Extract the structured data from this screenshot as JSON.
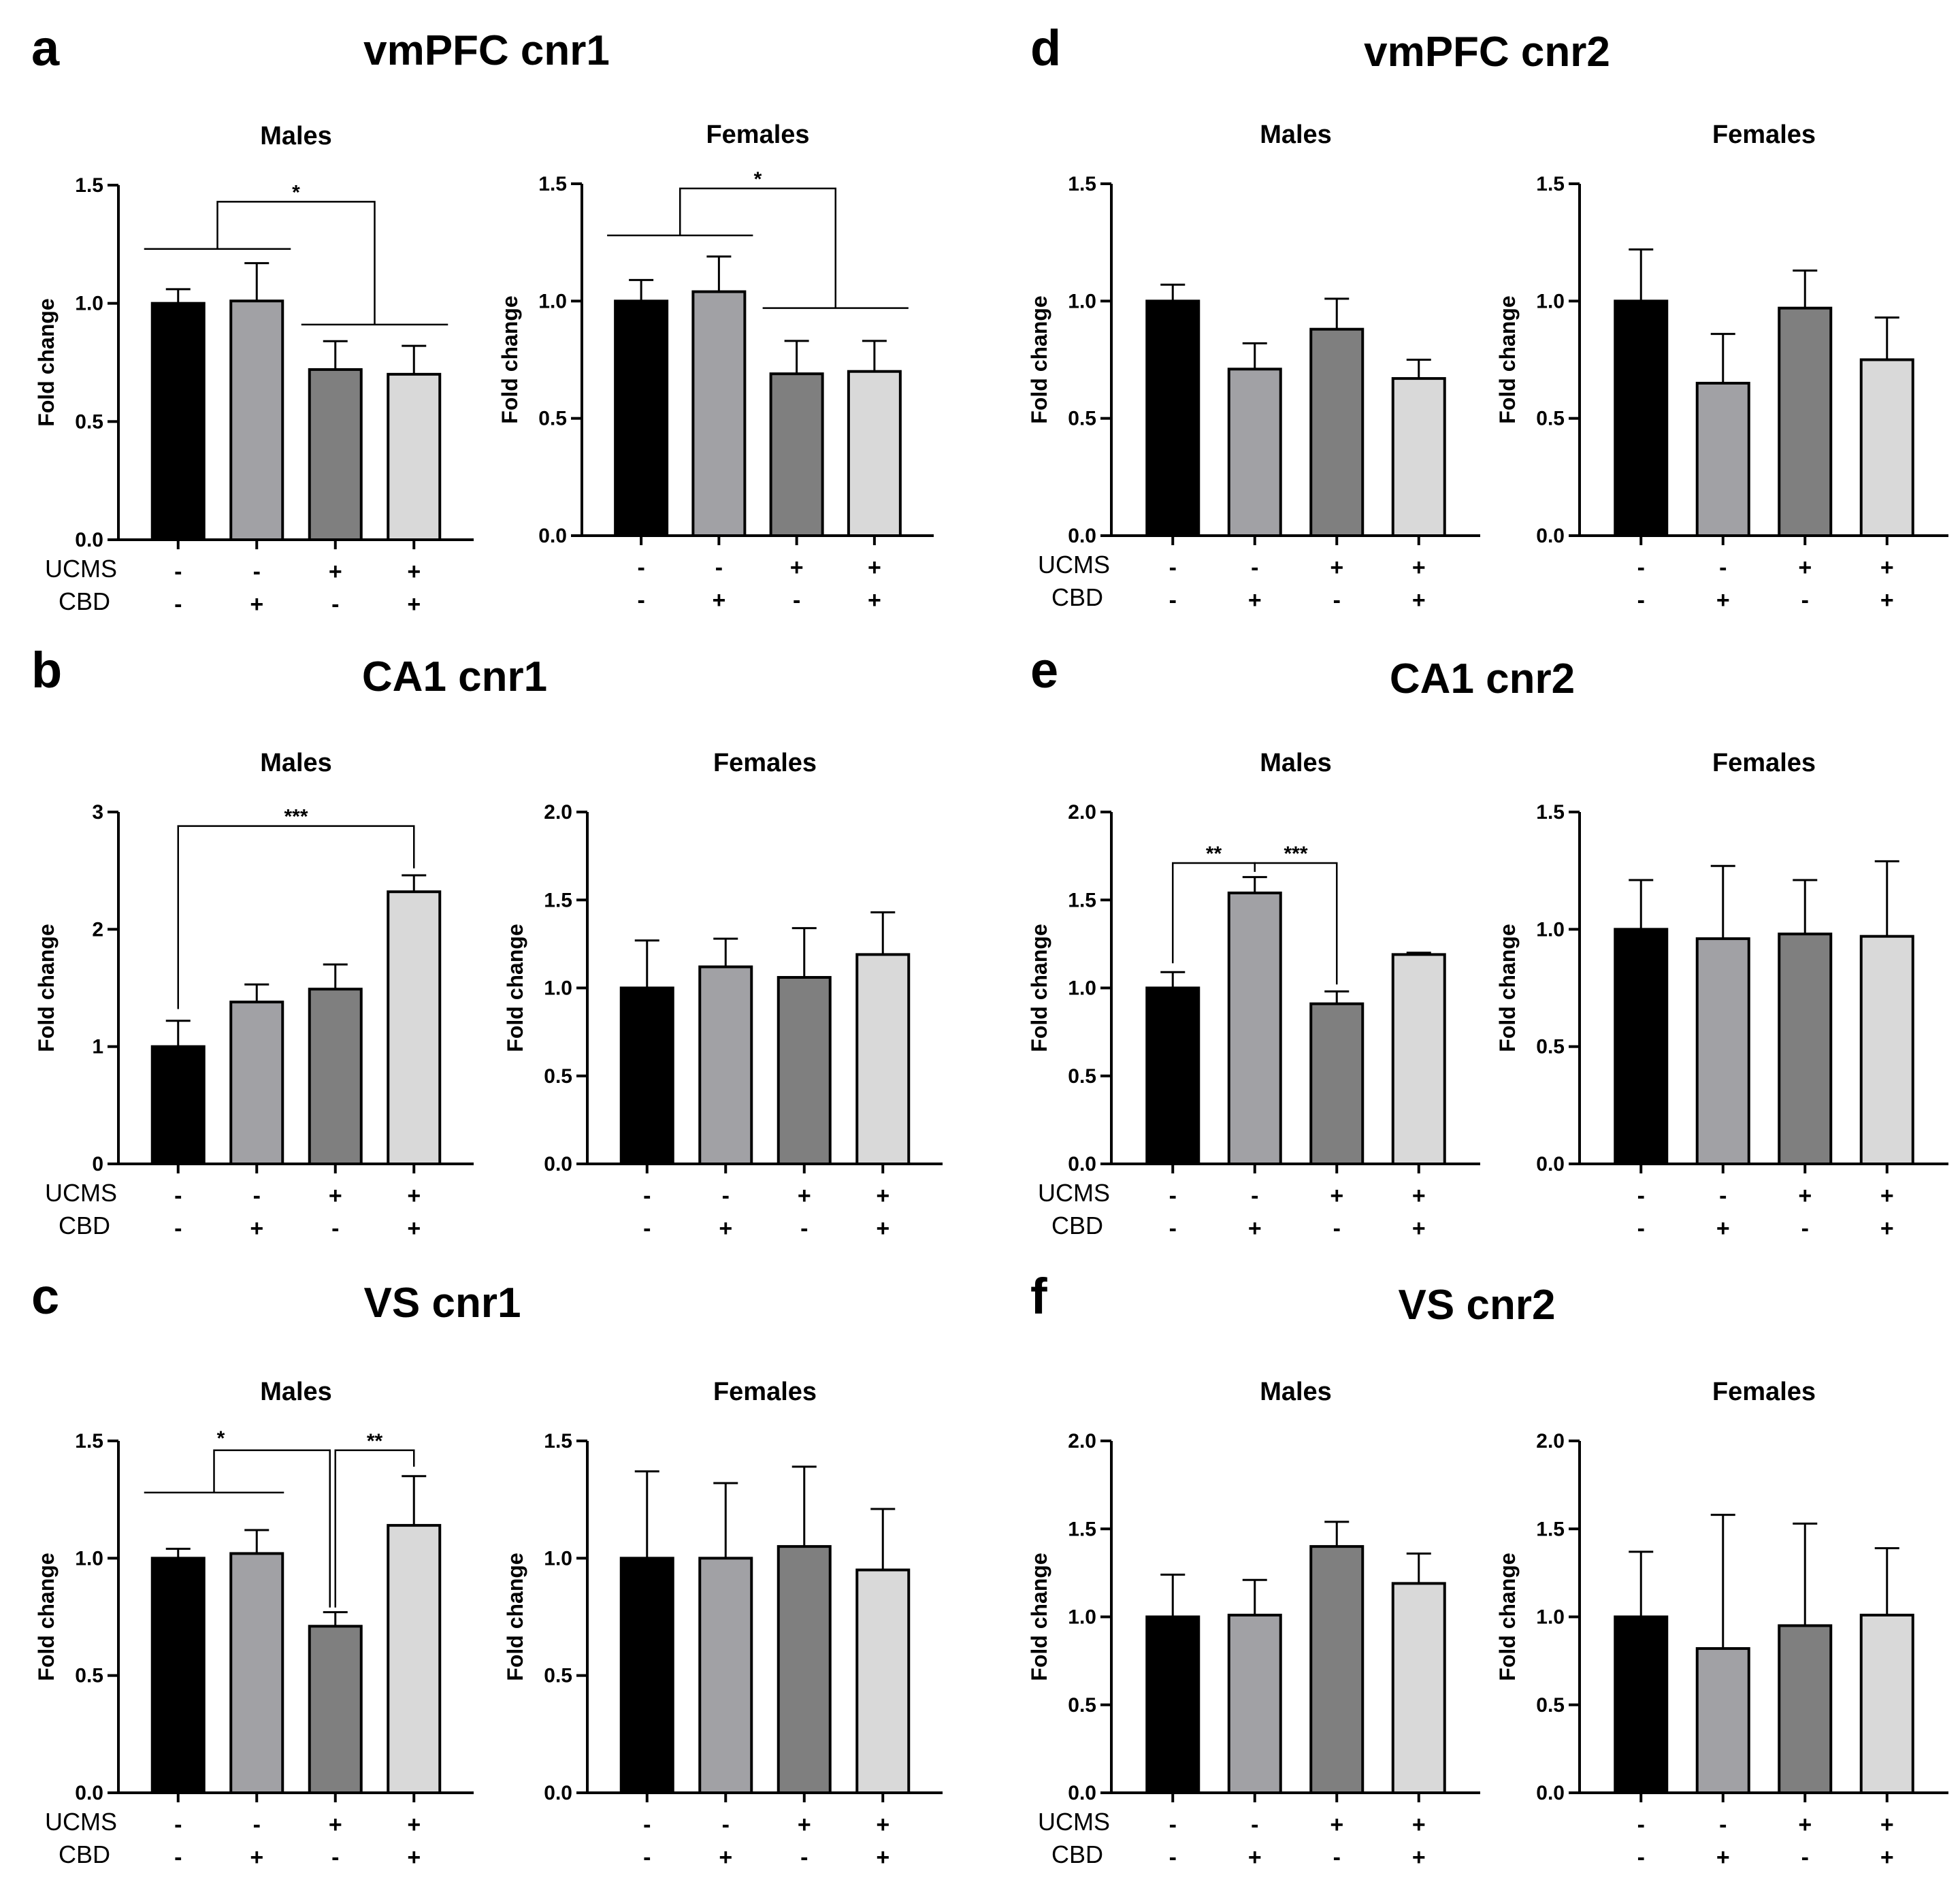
{
  "colors": {
    "group1": "#000000",
    "group2": "#a1a1a5",
    "group3": "#7f7f7f",
    "group4": "#d9d9d9"
  },
  "conditions": {
    "UCMS": [
      "-",
      "-",
      "+",
      "+"
    ],
    "CBD": [
      "-",
      "+",
      "-",
      "+"
    ]
  },
  "chart_data": [
    {
      "type": "bar",
      "panel": "a",
      "title": "vmPFC cnr1",
      "subtitle": "Males",
      "ylabel": "Fold change",
      "ylim": [
        0,
        1.5
      ],
      "yticks": [
        "0.0",
        "0.5",
        "1.0",
        "1.5"
      ],
      "row_labels": [
        "UCMS",
        "CBD"
      ],
      "values": [
        1.0,
        1.01,
        0.72,
        0.7
      ],
      "errors": [
        0.06,
        0.16,
        0.12,
        0.12
      ],
      "annotations": [
        {
          "label": "*",
          "kind": "pair-group",
          "left": [
            0,
            1
          ],
          "right": [
            2,
            3
          ],
          "y": 1.43,
          "g1y": 1.23,
          "g2y": 0.91
        }
      ]
    },
    {
      "type": "bar",
      "panel": "a",
      "title": "",
      "subtitle": "Females",
      "ylabel": "Fold change",
      "ylim": [
        0,
        1.5
      ],
      "yticks": [
        "0.0",
        "0.5",
        "1.0",
        "1.5"
      ],
      "row_labels": [],
      "values": [
        1.0,
        1.04,
        0.69,
        0.7
      ],
      "errors": [
        0.09,
        0.15,
        0.14,
        0.13
      ],
      "annotations": [
        {
          "label": "*",
          "kind": "pair-group",
          "left": [
            0,
            1
          ],
          "right": [
            2,
            3
          ],
          "y": 1.48,
          "g1y": 1.28,
          "g2y": 0.97
        }
      ]
    },
    {
      "type": "bar",
      "panel": "d",
      "title": "vmPFC cnr2",
      "subtitle": "Males",
      "ylabel": "Fold change",
      "ylim": [
        0,
        1.5
      ],
      "yticks": [
        "0.0",
        "0.5",
        "1.0",
        "1.5"
      ],
      "row_labels": [
        "UCMS",
        "CBD"
      ],
      "values": [
        1.0,
        0.71,
        0.88,
        0.67
      ],
      "errors": [
        0.07,
        0.11,
        0.13,
        0.08
      ],
      "annotations": []
    },
    {
      "type": "bar",
      "panel": "d",
      "title": "",
      "subtitle": "Females",
      "ylabel": "Fold change",
      "ylim": [
        0,
        1.5
      ],
      "yticks": [
        "0.0",
        "0.5",
        "1.0",
        "1.5"
      ],
      "row_labels": [],
      "values": [
        1.0,
        0.65,
        0.97,
        0.75
      ],
      "errors": [
        0.22,
        0.21,
        0.16,
        0.18
      ],
      "annotations": []
    },
    {
      "type": "bar",
      "panel": "b",
      "title": "CA1 cnr1",
      "subtitle": "Males",
      "ylabel": "Fold change",
      "ylim": [
        0,
        3
      ],
      "yticks": [
        "0",
        "1",
        "2",
        "3"
      ],
      "row_labels": [
        "UCMS",
        "CBD"
      ],
      "values": [
        1.0,
        1.38,
        1.49,
        2.32
      ],
      "errors": [
        0.22,
        0.15,
        0.21,
        0.14
      ],
      "annotations": [
        {
          "label": "***",
          "kind": "bracket",
          "from": 0,
          "to": 3,
          "y": 2.88,
          "fromy": 1.32,
          "toy": 2.52
        }
      ]
    },
    {
      "type": "bar",
      "panel": "b",
      "title": "",
      "subtitle": "Females",
      "ylabel": "Fold change",
      "ylim": [
        0,
        2.0
      ],
      "yticks": [
        "0.0",
        "0.5",
        "1.0",
        "1.5",
        "2.0"
      ],
      "row_labels": [],
      "values": [
        1.0,
        1.12,
        1.06,
        1.19
      ],
      "errors": [
        0.27,
        0.16,
        0.28,
        0.24
      ],
      "annotations": []
    },
    {
      "type": "bar",
      "panel": "e",
      "title": "CA1 cnr2",
      "subtitle": "Males",
      "ylabel": "Fold change",
      "ylim": [
        0,
        2.0
      ],
      "yticks": [
        "0.0",
        "0.5",
        "1.0",
        "1.5",
        "2.0"
      ],
      "row_labels": [
        "UCMS",
        "CBD"
      ],
      "values": [
        1.0,
        1.54,
        0.91,
        1.19
      ],
      "errors": [
        0.09,
        0.09,
        0.07,
        0.01
      ],
      "annotations": [
        {
          "label": "**",
          "kind": "bracket",
          "from": 0,
          "to": 1,
          "y": 1.71,
          "fromy": 1.14,
          "toy": 1.66
        },
        {
          "label": "***",
          "kind": "bracket",
          "from": 1,
          "to": 2,
          "y": 1.71,
          "fromy": 1.66,
          "toy": 1.02
        }
      ]
    },
    {
      "type": "bar",
      "panel": "e",
      "title": "",
      "subtitle": "Females",
      "ylabel": "Fold change",
      "ylim": [
        0,
        1.5
      ],
      "yticks": [
        "0.0",
        "0.5",
        "1.0",
        "1.5"
      ],
      "row_labels": [],
      "values": [
        1.0,
        0.96,
        0.98,
        0.97
      ],
      "errors": [
        0.21,
        0.31,
        0.23,
        0.32
      ],
      "annotations": []
    },
    {
      "type": "bar",
      "panel": "c",
      "title": "VS cnr1",
      "subtitle": "Males",
      "ylabel": "Fold change",
      "ylim": [
        0,
        1.5
      ],
      "yticks": [
        "0.0",
        "0.5",
        "1.0",
        "1.5"
      ],
      "row_labels": [
        "UCMS",
        "CBD"
      ],
      "values": [
        1.0,
        1.02,
        0.71,
        1.14
      ],
      "errors": [
        0.04,
        0.1,
        0.06,
        0.21
      ],
      "annotations": [
        {
          "label": "*",
          "kind": "group-to-bar",
          "left": [
            0,
            1
          ],
          "to": 2,
          "y": 1.46,
          "g1y": 1.28,
          "toy": 0.79
        },
        {
          "label": "**",
          "kind": "bracket",
          "from": 2,
          "to": 3,
          "y": 1.46,
          "fromy": 0.79,
          "toy": 1.39
        }
      ]
    },
    {
      "type": "bar",
      "panel": "c",
      "title": "",
      "subtitle": "Females",
      "ylabel": "Fold change",
      "ylim": [
        0,
        1.5
      ],
      "yticks": [
        "0.0",
        "0.5",
        "1.0",
        "1.5"
      ],
      "row_labels": [],
      "values": [
        1.0,
        1.0,
        1.05,
        0.95
      ],
      "errors": [
        0.37,
        0.32,
        0.34,
        0.26
      ],
      "annotations": []
    },
    {
      "type": "bar",
      "panel": "f",
      "title": "VS cnr2",
      "subtitle": "Males",
      "ylabel": "Fold change",
      "ylim": [
        0,
        2.0
      ],
      "yticks": [
        "0.0",
        "0.5",
        "1.0",
        "1.5",
        "2.0"
      ],
      "row_labels": [
        "UCMS",
        "CBD"
      ],
      "values": [
        1.0,
        1.01,
        1.4,
        1.19
      ],
      "errors": [
        0.24,
        0.2,
        0.14,
        0.17
      ],
      "annotations": []
    },
    {
      "type": "bar",
      "panel": "f",
      "title": "",
      "subtitle": "Females",
      "ylabel": "Fold change",
      "ylim": [
        0,
        2.0
      ],
      "yticks": [
        "0.0",
        "0.5",
        "1.0",
        "1.5",
        "2.0"
      ],
      "row_labels": [],
      "values": [
        1.0,
        0.82,
        0.95,
        1.01
      ],
      "errors": [
        0.37,
        0.76,
        0.58,
        0.38
      ],
      "annotations": []
    }
  ]
}
